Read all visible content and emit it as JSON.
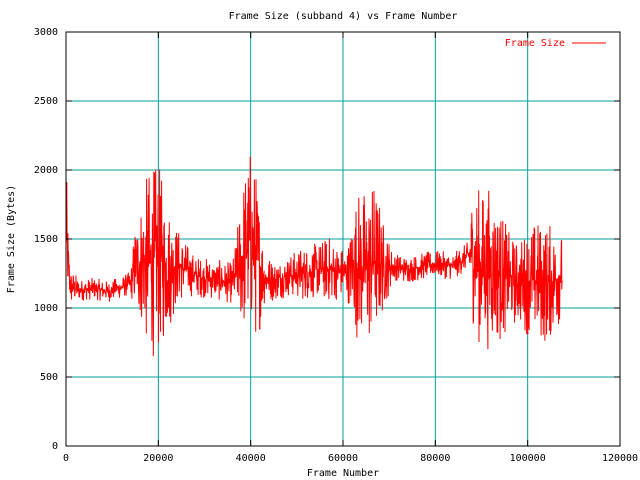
{
  "chart_data": {
    "type": "line",
    "title": "Frame Size (subband 4) vs Frame Number",
    "xlabel": "Frame Number",
    "ylabel": "Frame Size (Bytes)",
    "xlim": [
      0,
      120000
    ],
    "ylim": [
      0,
      3000
    ],
    "x_ticks": [
      0,
      20000,
      40000,
      60000,
      80000,
      100000,
      120000
    ],
    "y_ticks": [
      0,
      500,
      1000,
      1500,
      2000,
      2500,
      3000
    ],
    "x_tick_labels": [
      "0",
      "20000",
      "40000",
      "60000",
      "80000",
      "100000",
      "120000"
    ],
    "y_tick_labels": [
      "0",
      "500",
      "1000",
      "1500",
      "2000",
      "2500",
      "3000"
    ],
    "grid": true,
    "legend_position": "top-right",
    "series": [
      {
        "name": "Frame Size",
        "color": "#ff0000",
        "x": [
          0,
          500,
          1000,
          3000,
          6000,
          9000,
          12000,
          14000,
          15000,
          16500,
          18000,
          20000,
          22000,
          24000,
          26000,
          28000,
          30000,
          33000,
          36000,
          37000,
          38500,
          40000,
          41500,
          43000,
          45000,
          48000,
          51000,
          54000,
          57000,
          59000,
          61000,
          63000,
          65000,
          67000,
          69000,
          71000,
          74000,
          77000,
          80000,
          84000,
          87000,
          88000,
          90000,
          92000,
          94000,
          96000,
          98000,
          100000,
          102000,
          104000,
          106000,
          107500
        ],
        "values": [
          1600,
          1300,
          1150,
          1130,
          1140,
          1120,
          1150,
          1180,
          1300,
          1350,
          1320,
          1360,
          1300,
          1310,
          1280,
          1230,
          1220,
          1200,
          1180,
          1250,
          1400,
          1500,
          1350,
          1220,
          1200,
          1230,
          1250,
          1270,
          1280,
          1260,
          1250,
          1330,
          1280,
          1350,
          1300,
          1300,
          1280,
          1300,
          1320,
          1300,
          1380,
          1400,
          1280,
          1300,
          1250,
          1200,
          1180,
          1200,
          1200,
          1180,
          1200,
          1250
        ],
        "spread": [
          500,
          300,
          150,
          80,
          80,
          80,
          80,
          90,
          350,
          500,
          700,
          700,
          500,
          300,
          200,
          150,
          150,
          150,
          150,
          300,
          600,
          700,
          600,
          200,
          150,
          150,
          200,
          200,
          250,
          200,
          200,
          550,
          600,
          600,
          300,
          100,
          100,
          100,
          100,
          100,
          100,
          500,
          600,
          600,
          500,
          350,
          300,
          400,
          450,
          450,
          400,
          300
        ]
      }
    ]
  }
}
